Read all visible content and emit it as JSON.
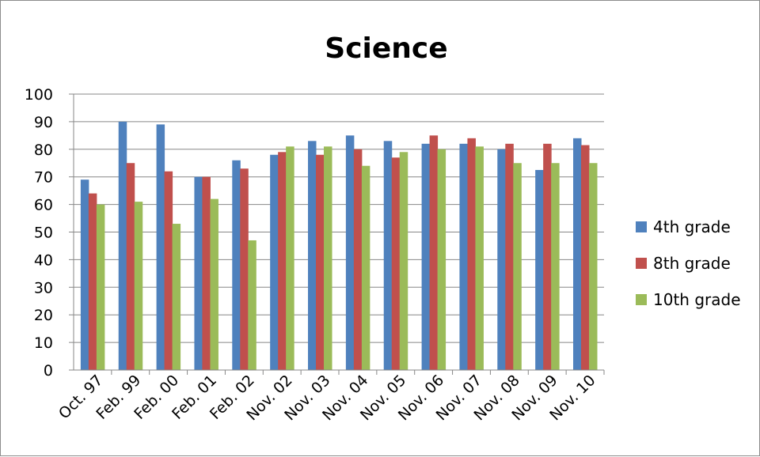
{
  "chart_data": {
    "type": "bar",
    "title": "Science",
    "xlabel": "",
    "ylabel": "",
    "ylim": [
      0,
      100
    ],
    "ytick_step": 10,
    "grid": true,
    "legend_position": "right",
    "categories": [
      "Oct. 97",
      "Feb. 99",
      "Feb. 00",
      "Feb. 01",
      "Feb. 02",
      "Nov. 02",
      "Nov. 03",
      "Nov. 04",
      "Nov. 05",
      "Nov. 06",
      "Nov. 07",
      "Nov. 08",
      "Nov. 09",
      "Nov. 10"
    ],
    "series": [
      {
        "name": "4th grade",
        "color": "#4f81bd",
        "values": [
          69,
          90,
          89,
          70,
          76,
          78,
          83,
          85,
          83,
          82,
          82,
          80,
          72.5,
          84
        ]
      },
      {
        "name": "8th grade",
        "color": "#c0504d",
        "values": [
          64,
          75,
          72,
          70,
          73,
          79,
          78,
          80,
          77,
          85,
          84,
          82,
          82,
          81.5
        ]
      },
      {
        "name": "10th grade",
        "color": "#9bbb59",
        "values": [
          60,
          61,
          53,
          62,
          47,
          81,
          81,
          74,
          79,
          80,
          81,
          75,
          75,
          75
        ]
      }
    ]
  }
}
